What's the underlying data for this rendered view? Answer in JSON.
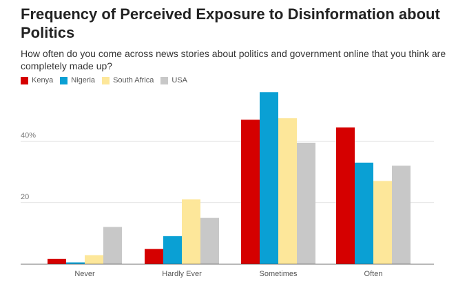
{
  "title": "Frequency of Perceived Exposure to Disinformation about Politics",
  "subtitle": "How often do you come across news stories about politics and government online that you think are completely made up?",
  "chart_data": {
    "type": "bar",
    "title": "Frequency of Perceived Exposure to Disinformation about Politics",
    "subtitle": "How often do you come across news stories about politics and government online that you think are completely made up?",
    "categories": [
      "Never",
      "Hardly Ever",
      "Sometimes",
      "Often"
    ],
    "series": [
      {
        "name": "Kenya",
        "color": "#d50000",
        "values": [
          1.6,
          4.8,
          47,
          44.5
        ]
      },
      {
        "name": "Nigeria",
        "color": "#0aa0d4",
        "values": [
          0.4,
          9,
          56,
          33
        ]
      },
      {
        "name": "South Africa",
        "color": "#fde79a",
        "values": [
          2.8,
          21,
          47.5,
          27
        ]
      },
      {
        "name": "USA",
        "color": "#c8c8c8",
        "values": [
          12,
          15,
          39.5,
          32
        ]
      }
    ],
    "yticks": [
      {
        "value": 20,
        "label": "20"
      },
      {
        "value": 40,
        "label": "40%"
      }
    ],
    "ylim": [
      0,
      66
    ],
    "xlabel": "",
    "ylabel": "",
    "grid": true,
    "legend": "top-left"
  }
}
